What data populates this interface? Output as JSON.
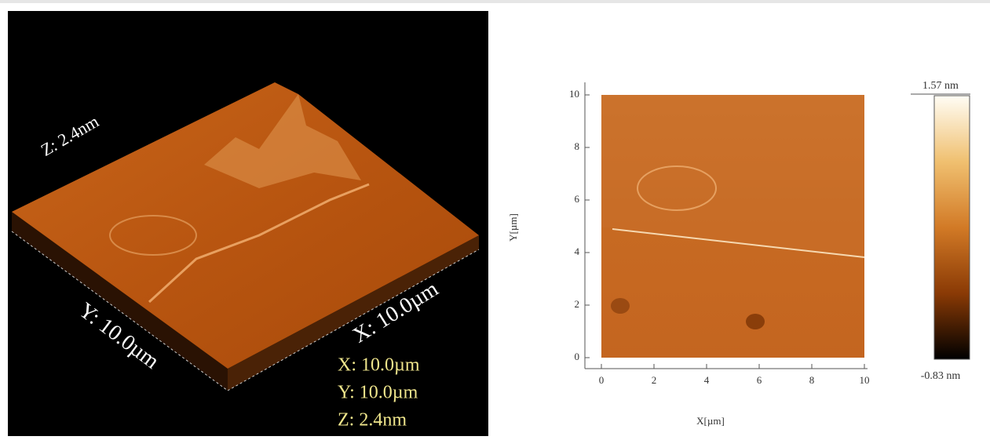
{
  "left_panel": {
    "z_edge_label": "Z: 2.4nm",
    "y_edge_label": "Y: 10.0µm",
    "x_edge_label": "X: 10.0µm",
    "legend": [
      "X: 10.0µm",
      "Y: 10.0µm",
      "Z: 2.4nm"
    ]
  },
  "right_panel": {
    "x_label": "X[µm]",
    "y_label": "Y[µm]",
    "xticks": [
      0,
      2,
      4,
      6,
      8,
      10
    ],
    "yticks": [
      0,
      2,
      4,
      6,
      8,
      10
    ],
    "colorbar": {
      "max_label": "1.57 nm",
      "min_label": "-0.83 nm"
    }
  }
}
